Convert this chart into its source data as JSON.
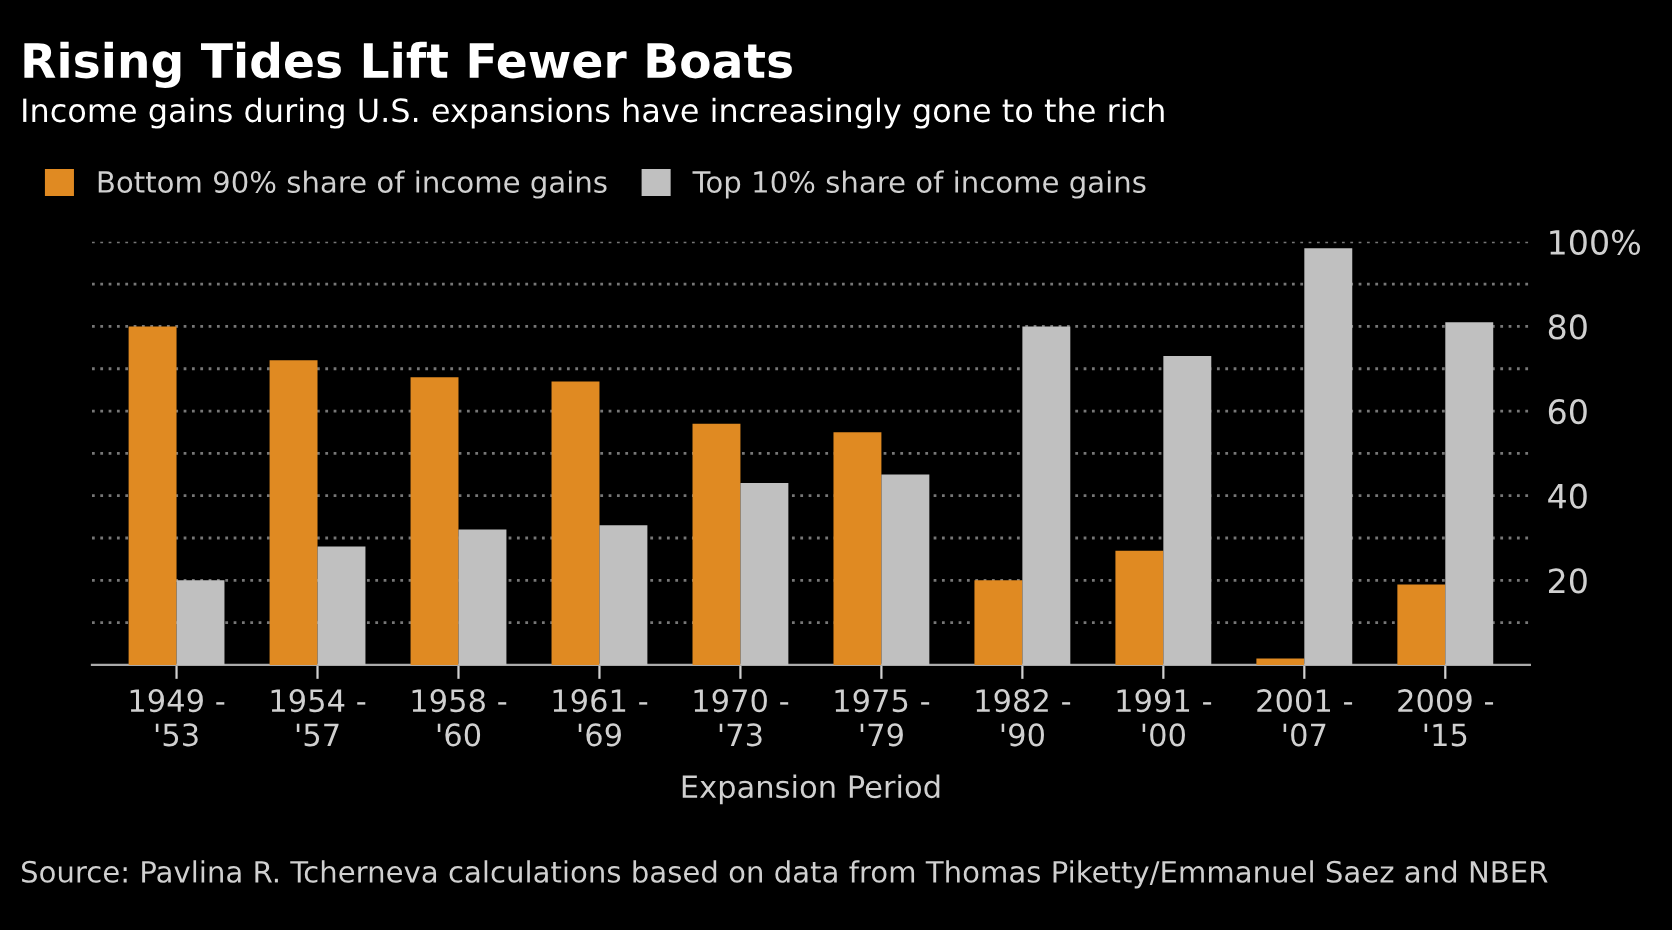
{
  "chart_data": {
    "type": "bar",
    "title": "Rising Tides Lift Fewer Boats",
    "subtitle": "Income gains during U.S. expansions have increasingly gone to the rich",
    "xlabel": "Expansion Period",
    "categories": [
      "1949 -\n'53",
      "1954 -\n'57",
      "1958 -\n'60",
      "1961 -\n'69",
      "1970 -\n'73",
      "1975 -\n'79",
      "1982 -\n'90",
      "1991 -\n'00",
      "2001 -\n'07",
      "2009 -\n'15"
    ],
    "series": [
      {
        "name": "Bottom 90% share of income gains",
        "color": "#e08a22",
        "values": [
          80,
          72,
          68,
          67,
          57,
          55,
          20,
          27,
          1.5,
          19
        ]
      },
      {
        "name": "Top 10% share of income gains",
        "color": "#c0c0c0",
        "values": [
          20,
          28,
          32,
          33,
          43,
          45,
          80,
          73,
          98.5,
          81
        ]
      }
    ],
    "ylim": [
      0,
      100
    ],
    "yticks": [
      {
        "value": 10,
        "label": null
      },
      20,
      {
        "value": 30,
        "label": null
      },
      40,
      {
        "value": 50,
        "label": null
      },
      60,
      {
        "value": 70,
        "label": null
      },
      80,
      {
        "value": 90,
        "label": null
      },
      {
        "value": 100,
        "label": "100%"
      }
    ],
    "grid": "y",
    "legend": "top left",
    "annotations": [
      "Source: Pavlina R. Tcherneva calculations based on data from Thomas Piketty/Emmanuel Saez and NBER"
    ]
  }
}
